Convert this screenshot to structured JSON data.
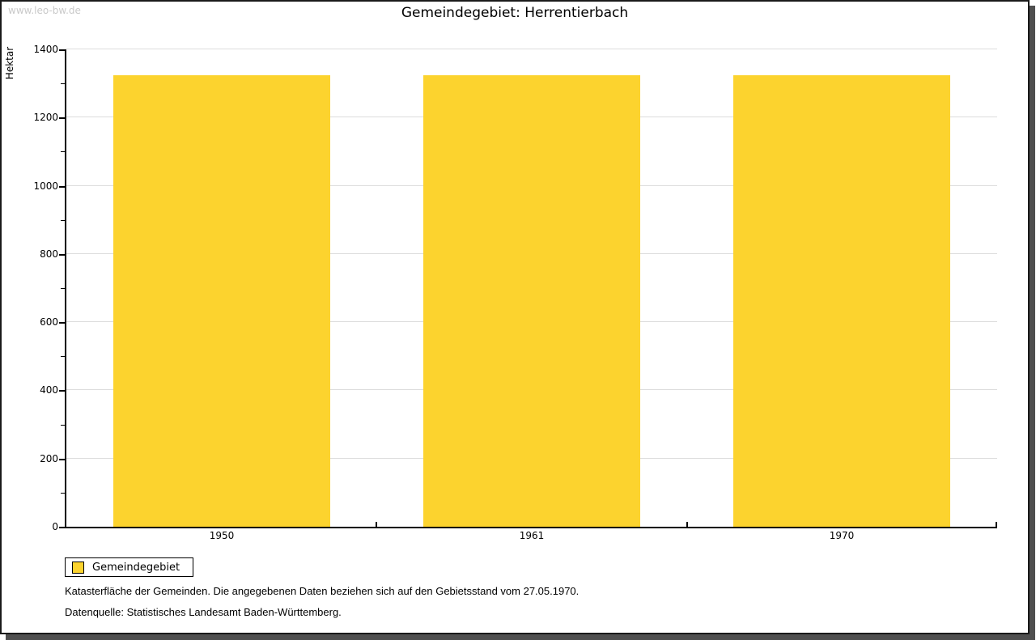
{
  "page": {
    "watermark": "www.leo-bw.de",
    "title": "Gemeindegebiet: Herrentierbach"
  },
  "chart_data": {
    "type": "bar",
    "title": "Gemeindegebiet: Herrentierbach",
    "categories": [
      "1950",
      "1961",
      "1970"
    ],
    "series": [
      {
        "name": "Gemeindegebiet",
        "color": "#FCD32E",
        "values": [
          1323,
          1323,
          1323
        ]
      }
    ],
    "xlabel": "",
    "ylabel": "Hektar",
    "ylim": [
      0,
      1400
    ],
    "ytick_step": 200,
    "yminor_step": 100,
    "grid": true,
    "gridline_color": "#DDDDDD",
    "legend_position": "bottom-left"
  },
  "legend": {
    "label": "Gemeindegebiet",
    "swatch_color": "#FCD32E"
  },
  "footnotes": {
    "line1": "Katasterfläche der Gemeinden. Die angegebenen Daten beziehen sich auf den Gebietsstand vom 27.05.1970.",
    "line2": "Datenquelle: Statistisches Landesamt Baden-Württemberg."
  }
}
